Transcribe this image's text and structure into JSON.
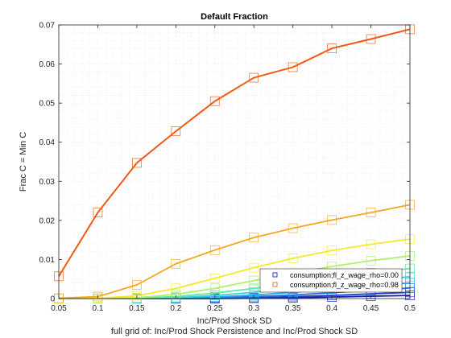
{
  "chart_data": {
    "type": "line",
    "title": "Default Fraction",
    "xlabel": "Inc/Prod Shock SD",
    "ylabel": "Frac C = Min C",
    "footnote": "full grid of: Inc/Prod Shock Persistence and Inc/Prod Shock SD",
    "xlim": [
      0.05,
      0.5
    ],
    "ylim": [
      0,
      0.07
    ],
    "grid": "minor dotted",
    "legend_position": "bottom-right",
    "x": [
      0.05,
      0.1,
      0.15,
      0.2,
      0.25,
      0.3,
      0.35,
      0.4,
      0.45,
      0.5
    ],
    "x_ticks": [
      "0.05",
      "0.1",
      "0.15",
      "0.2",
      "0.25",
      "0.3",
      "0.35",
      "0.4",
      "0.45",
      "0.5"
    ],
    "y_ticks": [
      "0",
      "0.01",
      "0.02",
      "0.03",
      "0.04",
      "0.05",
      "0.06",
      "0.07"
    ],
    "y_tick_values": [
      0,
      0.01,
      0.02,
      0.03,
      0.04,
      0.05,
      0.06,
      0.07
    ],
    "legend": [
      {
        "label": "consumption;fl_z_wage_rho=0.00",
        "color": "#1f1fbf"
      },
      {
        "label": "consumption;fl_z_wage_rho=0.98",
        "color": "#e8603a"
      }
    ],
    "series": [
      {
        "color": "#f15a12",
        "values": [
          0.0057,
          0.022,
          0.0347,
          0.0428,
          0.0505,
          0.0565,
          0.0592,
          0.064,
          0.0664,
          0.0689
        ]
      },
      {
        "color": "#f5a623",
        "values": [
          0.0001,
          0.0005,
          0.0035,
          0.0089,
          0.0124,
          0.0156,
          0.018,
          0.0201,
          0.022,
          0.024
        ]
      },
      {
        "color": "#f7e92a",
        "values": [
          0.0,
          0.0001,
          0.0007,
          0.0026,
          0.0052,
          0.0079,
          0.0103,
          0.0123,
          0.0139,
          0.0152
        ]
      },
      {
        "color": "#aef06a",
        "values": [
          0.0,
          0.0,
          0.0002,
          0.0011,
          0.0026,
          0.0046,
          0.0065,
          0.0082,
          0.0097,
          0.0109
        ]
      },
      {
        "color": "#5fe7a3",
        "values": [
          0.0,
          0.0,
          0.0001,
          0.0005,
          0.0014,
          0.0026,
          0.004,
          0.0054,
          0.0066,
          0.0077
        ]
      },
      {
        "color": "#2fd3d8",
        "values": [
          0.0,
          0.0,
          0.0,
          0.0002,
          0.0008,
          0.0016,
          0.0026,
          0.0036,
          0.0046,
          0.0056
        ]
      },
      {
        "color": "#1fa8f0",
        "values": [
          0.0,
          0.0,
          0.0,
          0.0001,
          0.0004,
          0.0009,
          0.0016,
          0.0024,
          0.0032,
          0.004
        ]
      },
      {
        "color": "#1f6fe0",
        "values": [
          0.0,
          0.0,
          0.0,
          0.0,
          0.0002,
          0.0005,
          0.0009,
          0.0015,
          0.0021,
          0.0027
        ]
      },
      {
        "color": "#1a3fd0",
        "values": [
          0.0,
          0.0,
          0.0,
          0.0,
          0.0001,
          0.0002,
          0.0005,
          0.0008,
          0.0012,
          0.0016
        ]
      },
      {
        "color": "#1a1aa8",
        "values": [
          0.0,
          0.0,
          0.0,
          0.0,
          0.0,
          0.0001,
          0.0002,
          0.0004,
          0.0006,
          0.0008
        ]
      }
    ]
  }
}
